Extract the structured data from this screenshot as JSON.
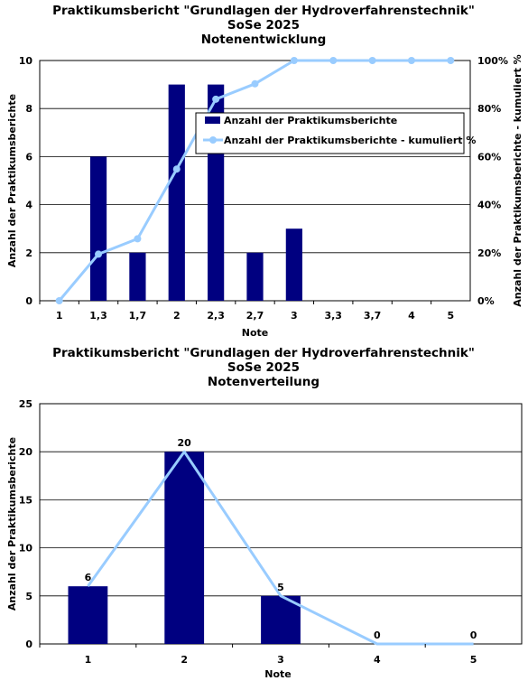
{
  "colors": {
    "bar": "#000080",
    "line": "#99ccff",
    "grid": "#000000"
  },
  "chart_data": [
    {
      "type": "bar",
      "title": [
        "Praktikumsbericht \"Grundlagen der Hydroverfahrenstechnik\"",
        "SoSe 2025",
        "Notenentwicklung"
      ],
      "xlabel": "Note",
      "ylabel": "Anzahl der Praktikumsberichte",
      "y2label": "Anzahl der Praktikumsberichte - kumuliert %",
      "categories": [
        "1",
        "1,3",
        "1,7",
        "2",
        "2,3",
        "2,7",
        "3",
        "3,3",
        "3,7",
        "4",
        "5"
      ],
      "ylim": [
        0,
        10
      ],
      "yticks": [
        "0",
        "2",
        "4",
        "6",
        "8",
        "10"
      ],
      "y2lim": [
        0,
        100
      ],
      "y2ticks": [
        "0%",
        "20%",
        "40%",
        "60%",
        "80%",
        "100%"
      ],
      "grid": "horizontal",
      "legend_position": "center-right",
      "series": [
        {
          "name": "Anzahl der Praktikumsberichte",
          "kind": "bar",
          "axis": "left",
          "values": [
            0,
            6,
            2,
            9,
            9,
            2,
            3,
            0,
            0,
            0,
            0
          ]
        },
        {
          "name": "Anzahl der Praktikumsberichte - kumuliert %",
          "kind": "line",
          "axis": "right",
          "values": [
            0,
            19.4,
            25.8,
            54.8,
            83.9,
            90.3,
            100,
            100,
            100,
            100,
            100
          ]
        }
      ]
    },
    {
      "type": "bar",
      "title": [
        "Praktikumsbericht \"Grundlagen der Hydroverfahrenstechnik\"",
        "SoSe 2025",
        "Notenverteilung"
      ],
      "xlabel": "Note",
      "ylabel": "Anzahl der Praktikumsberichte",
      "categories": [
        "1",
        "2",
        "3",
        "4",
        "5"
      ],
      "ylim": [
        0,
        25
      ],
      "yticks": [
        "0",
        "5",
        "10",
        "15",
        "20",
        "25"
      ],
      "grid": "horizontal",
      "series": [
        {
          "kind": "bar",
          "values": [
            6,
            20,
            5,
            0,
            0
          ]
        },
        {
          "kind": "line",
          "values": [
            6,
            20,
            5,
            0,
            0
          ]
        }
      ],
      "data_labels": [
        "6",
        "20",
        "5",
        "0",
        "0"
      ]
    }
  ]
}
